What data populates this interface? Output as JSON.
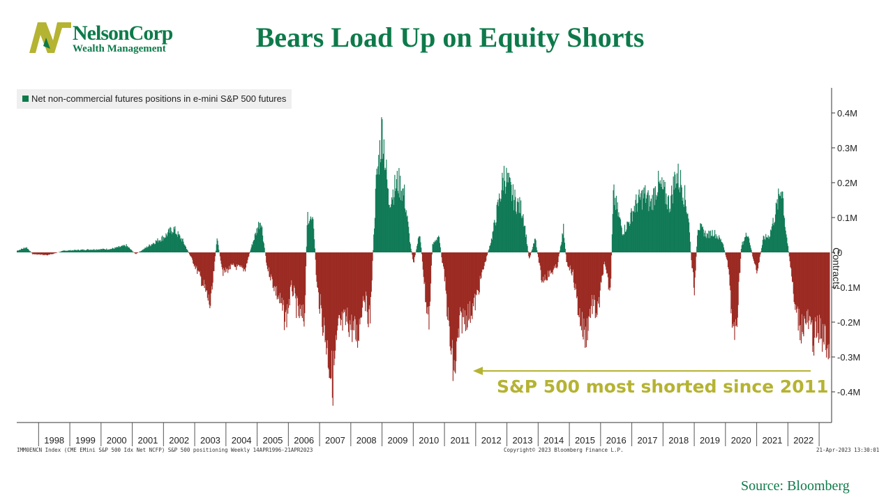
{
  "logo": {
    "name": "NelsonCorp",
    "subtitle": "Wealth Management"
  },
  "title": "Bears Load Up on Equity Shorts",
  "source": "Source: Bloomberg",
  "colors": {
    "brand": "#0d7a4a",
    "positive": "#117a56",
    "negative": "#9b2a22",
    "annotation": "#b5b332",
    "logo_mark": "#b5b332"
  },
  "footer": {
    "left": "IMM0ENCN Index (CME EMini S&P 500 Idx Net NCFP) S&P 500 positioning  Weekly 14APR1996-21APR2023",
    "center": "Copyright© 2023 Bloomberg Finance L.P.",
    "right": "21-Apr-2023 13:30:01"
  },
  "chart_data": {
    "type": "bar",
    "legend": "Net non-commercial futures positions in e-mini S&P 500 futures",
    "ylabel": "Contracts",
    "yticks": [
      "0.4M",
      "0.3M",
      "0.2M",
      "0.1M",
      "0",
      "-0.1M",
      "-0.2M",
      "-0.3M",
      "-0.4M"
    ],
    "ytick_values": [
      400000,
      300000,
      200000,
      100000,
      0,
      -100000,
      -200000,
      -300000,
      -400000
    ],
    "ylim": [
      -480000,
      470000
    ],
    "xlim": [
      1997.3,
      2023.4
    ],
    "xticks": [
      "1998",
      "1999",
      "2000",
      "2001",
      "2002",
      "2003",
      "2004",
      "2005",
      "2006",
      "2007",
      "2008",
      "2009",
      "2010",
      "2011",
      "2012",
      "2013",
      "2014",
      "2015",
      "2016",
      "2017",
      "2018",
      "2019",
      "2020",
      "2021",
      "2022"
    ],
    "annotation": "S&P 500 most shorted since 2011",
    "series_keyframes": [
      [
        1997.3,
        5000
      ],
      [
        1997.6,
        15000
      ],
      [
        1997.8,
        -5000
      ],
      [
        1998.3,
        -8000
      ],
      [
        1998.8,
        5000
      ],
      [
        1999.5,
        8000
      ],
      [
        2000.3,
        10000
      ],
      [
        2000.8,
        20000
      ],
      [
        2001.1,
        -5000
      ],
      [
        2001.4,
        12000
      ],
      [
        2001.7,
        30000
      ],
      [
        2002.0,
        45000
      ],
      [
        2002.3,
        70000
      ],
      [
        2002.6,
        35000
      ],
      [
        2002.9,
        -20000
      ],
      [
        2003.2,
        -80000
      ],
      [
        2003.5,
        -160000
      ],
      [
        2003.7,
        40000
      ],
      [
        2003.9,
        -60000
      ],
      [
        2004.2,
        -40000
      ],
      [
        2004.6,
        -50000
      ],
      [
        2004.8,
        15000
      ],
      [
        2005.1,
        100000
      ],
      [
        2005.3,
        -40000
      ],
      [
        2005.7,
        -140000
      ],
      [
        2005.9,
        -200000
      ],
      [
        2006.1,
        -100000
      ],
      [
        2006.3,
        -180000
      ],
      [
        2006.5,
        -200000
      ],
      [
        2006.6,
        110000
      ],
      [
        2006.8,
        80000
      ],
      [
        2006.9,
        -100000
      ],
      [
        2007.2,
        -260000
      ],
      [
        2007.4,
        -380000
      ],
      [
        2007.6,
        -220000
      ],
      [
        2007.9,
        -200000
      ],
      [
        2008.2,
        -250000
      ],
      [
        2008.4,
        -120000
      ],
      [
        2008.6,
        -200000
      ],
      [
        2008.8,
        200000
      ],
      [
        2009.0,
        370000
      ],
      [
        2009.2,
        150000
      ],
      [
        2009.5,
        210000
      ],
      [
        2009.7,
        170000
      ],
      [
        2009.9,
        20000
      ],
      [
        2010.0,
        -30000
      ],
      [
        2010.2,
        60000
      ],
      [
        2010.4,
        -150000
      ],
      [
        2010.5,
        -200000
      ],
      [
        2010.6,
        20000
      ],
      [
        2010.8,
        50000
      ],
      [
        2011.0,
        -80000
      ],
      [
        2011.2,
        -300000
      ],
      [
        2011.3,
        -360000
      ],
      [
        2011.5,
        -200000
      ],
      [
        2011.8,
        -180000
      ],
      [
        2012.0,
        -140000
      ],
      [
        2012.2,
        -60000
      ],
      [
        2012.5,
        40000
      ],
      [
        2012.8,
        180000
      ],
      [
        2012.9,
        230000
      ],
      [
        2013.2,
        160000
      ],
      [
        2013.5,
        120000
      ],
      [
        2013.7,
        -20000
      ],
      [
        2013.9,
        40000
      ],
      [
        2014.1,
        -80000
      ],
      [
        2014.4,
        -60000
      ],
      [
        2014.6,
        -40000
      ],
      [
        2014.8,
        70000
      ],
      [
        2014.9,
        -30000
      ],
      [
        2015.1,
        -60000
      ],
      [
        2015.3,
        -180000
      ],
      [
        2015.5,
        -250000
      ],
      [
        2015.7,
        -150000
      ],
      [
        2015.9,
        -180000
      ],
      [
        2016.1,
        -30000
      ],
      [
        2016.3,
        -120000
      ],
      [
        2016.4,
        170000
      ],
      [
        2016.7,
        60000
      ],
      [
        2016.9,
        90000
      ],
      [
        2017.1,
        140000
      ],
      [
        2017.4,
        170000
      ],
      [
        2017.6,
        140000
      ],
      [
        2017.8,
        200000
      ],
      [
        2018.0,
        180000
      ],
      [
        2018.2,
        140000
      ],
      [
        2018.4,
        230000
      ],
      [
        2018.6,
        200000
      ],
      [
        2018.8,
        110000
      ],
      [
        2018.9,
        -30000
      ],
      [
        2019.0,
        -110000
      ],
      [
        2019.1,
        80000
      ],
      [
        2019.4,
        50000
      ],
      [
        2019.6,
        60000
      ],
      [
        2019.9,
        30000
      ],
      [
        2020.1,
        -50000
      ],
      [
        2020.2,
        -200000
      ],
      [
        2020.3,
        -280000
      ],
      [
        2020.5,
        20000
      ],
      [
        2020.7,
        60000
      ],
      [
        2020.9,
        -30000
      ],
      [
        2021.0,
        -60000
      ],
      [
        2021.2,
        40000
      ],
      [
        2021.4,
        50000
      ],
      [
        2021.6,
        120000
      ],
      [
        2021.8,
        200000
      ],
      [
        2021.9,
        80000
      ],
      [
        2022.1,
        -60000
      ],
      [
        2022.2,
        -160000
      ],
      [
        2022.4,
        -220000
      ],
      [
        2022.6,
        -200000
      ],
      [
        2022.8,
        -250000
      ],
      [
        2023.0,
        -230000
      ],
      [
        2023.3,
        -280000
      ],
      [
        2023.32,
        -320000
      ]
    ]
  }
}
